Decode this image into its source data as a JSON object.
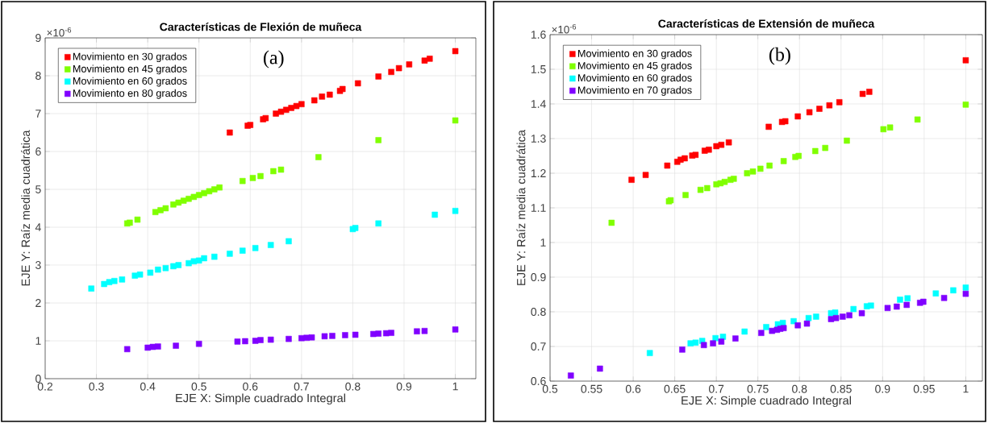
{
  "chart_data": [
    {
      "type": "scatter",
      "title": "Características de Flexión de muñeca",
      "xlabel": "EJE X: Simple cuadrado Integral",
      "ylabel": "EJE Y: Raíz media cuadrática",
      "annotations": [
        "×10$^{-6}$",
        "(a)"
      ],
      "xlim": [
        0.2,
        1.04
      ],
      "ylim": [
        0,
        9
      ],
      "xticks": [
        0.2,
        0.3,
        0.4,
        0.5,
        0.6,
        0.7,
        0.8,
        0.9,
        1
      ],
      "yticks": [
        0,
        1,
        2,
        3,
        4,
        5,
        6,
        7,
        8,
        9
      ],
      "grid": true,
      "legend": "top left",
      "marker": "square",
      "series": [
        {
          "name": "Movimiento en 30 grados",
          "color": "#ff0000",
          "x": [
            0.56,
            0.595,
            0.6,
            0.625,
            0.63,
            0.65,
            0.66,
            0.67,
            0.68,
            0.69,
            0.7,
            0.725,
            0.74,
            0.755,
            0.775,
            0.78,
            0.81,
            0.85,
            0.875,
            0.89,
            0.91,
            0.94,
            0.95,
            1
          ],
          "values": [
            6.5,
            6.68,
            6.7,
            6.85,
            6.88,
            7.0,
            7.05,
            7.1,
            7.15,
            7.2,
            7.25,
            7.35,
            7.45,
            7.5,
            7.6,
            7.65,
            7.8,
            7.98,
            8.1,
            8.2,
            8.3,
            8.4,
            8.45,
            8.65
          ]
        },
        {
          "name": "Movimiento en 45 grados",
          "color": "#80ff00",
          "x": [
            0.36,
            0.365,
            0.38,
            0.415,
            0.425,
            0.435,
            0.45,
            0.46,
            0.47,
            0.48,
            0.49,
            0.5,
            0.51,
            0.52,
            0.53,
            0.54,
            0.585,
            0.605,
            0.62,
            0.645,
            0.66,
            0.733,
            0.85,
            1
          ],
          "values": [
            4.1,
            4.12,
            4.2,
            4.4,
            4.45,
            4.5,
            4.6,
            4.65,
            4.7,
            4.75,
            4.8,
            4.85,
            4.9,
            4.95,
            5.0,
            5.05,
            5.22,
            5.3,
            5.35,
            5.48,
            5.52,
            5.85,
            6.3,
            6.82
          ]
        },
        {
          "name": "Movimiento en 60 grados",
          "color": "#00ffff",
          "x": [
            0.29,
            0.315,
            0.325,
            0.335,
            0.35,
            0.375,
            0.385,
            0.405,
            0.42,
            0.435,
            0.45,
            0.46,
            0.48,
            0.49,
            0.5,
            0.51,
            0.53,
            0.56,
            0.585,
            0.61,
            0.64,
            0.675,
            0.8,
            0.805,
            0.85,
            0.96,
            1
          ],
          "values": [
            2.38,
            2.5,
            2.55,
            2.58,
            2.62,
            2.72,
            2.75,
            2.8,
            2.88,
            2.92,
            2.97,
            3.0,
            3.05,
            3.1,
            3.12,
            3.18,
            3.22,
            3.3,
            3.38,
            3.45,
            3.53,
            3.63,
            3.95,
            3.98,
            4.1,
            4.33,
            4.43
          ]
        },
        {
          "name": "Movimiento en 80 grados",
          "color": "#8000ff",
          "x": [
            0.36,
            0.4,
            0.41,
            0.42,
            0.455,
            0.5,
            0.575,
            0.59,
            0.61,
            0.62,
            0.64,
            0.675,
            0.7,
            0.71,
            0.72,
            0.745,
            0.76,
            0.785,
            0.805,
            0.84,
            0.85,
            0.865,
            0.875,
            0.925,
            0.94,
            1
          ],
          "values": [
            0.78,
            0.82,
            0.84,
            0.85,
            0.87,
            0.92,
            0.98,
            0.99,
            1.0,
            1.02,
            1.03,
            1.05,
            1.07,
            1.08,
            1.09,
            1.12,
            1.13,
            1.15,
            1.16,
            1.18,
            1.19,
            1.2,
            1.21,
            1.25,
            1.26,
            1.3
          ]
        }
      ]
    },
    {
      "type": "scatter",
      "title": "Características de Extensión de muñeca",
      "xlabel": "EJE X: Simple cuadrado Integral",
      "ylabel": "EJE Y: Raíz media cuadrática",
      "annotations": [
        "×10$^{-6}$",
        "(b)"
      ],
      "xlim": [
        0.5,
        1.02
      ],
      "ylim": [
        0.6,
        1.6
      ],
      "xticks": [
        0.5,
        0.55,
        0.6,
        0.65,
        0.7,
        0.75,
        0.8,
        0.85,
        0.9,
        0.95,
        1
      ],
      "yticks": [
        0.6,
        0.7,
        0.8,
        0.9,
        1,
        1.1,
        1.2,
        1.3,
        1.4,
        1.5,
        1.6
      ],
      "grid": true,
      "legend": "top left",
      "marker": "square",
      "series": [
        {
          "name": "Movimiento en 30 grados",
          "color": "#ff0000",
          "x": [
            0.598,
            0.615,
            0.641,
            0.653,
            0.657,
            0.662,
            0.671,
            0.675,
            0.686,
            0.691,
            0.7,
            0.706,
            0.715,
            0.763,
            0.779,
            0.783,
            0.798,
            0.812,
            0.824,
            0.836,
            0.848,
            0.876,
            0.884,
            1
          ],
          "values": [
            1.181,
            1.195,
            1.222,
            1.233,
            1.239,
            1.243,
            1.251,
            1.253,
            1.265,
            1.268,
            1.278,
            1.282,
            1.289,
            1.334,
            1.348,
            1.35,
            1.364,
            1.376,
            1.386,
            1.396,
            1.405,
            1.429,
            1.435,
            1.526
          ]
        },
        {
          "name": "Movimiento en 45 grados",
          "color": "#80ff00",
          "x": [
            0.574,
            0.643,
            0.645,
            0.663,
            0.681,
            0.689,
            0.7,
            0.705,
            0.71,
            0.717,
            0.721,
            0.737,
            0.744,
            0.753,
            0.764,
            0.781,
            0.795,
            0.799,
            0.819,
            0.831,
            0.857,
            0.901,
            0.909,
            0.942,
            1
          ],
          "values": [
            1.057,
            1.119,
            1.122,
            1.137,
            1.152,
            1.157,
            1.168,
            1.171,
            1.175,
            1.181,
            1.184,
            1.2,
            1.205,
            1.213,
            1.222,
            1.235,
            1.247,
            1.25,
            1.264,
            1.273,
            1.294,
            1.327,
            1.332,
            1.355,
            1.398
          ]
        },
        {
          "name": "Movimiento en 60 grados",
          "color": "#00ffff",
          "x": [
            0.62,
            0.669,
            0.675,
            0.683,
            0.699,
            0.708,
            0.734,
            0.76,
            0.774,
            0.78,
            0.793,
            0.811,
            0.82,
            0.838,
            0.843,
            0.865,
            0.881,
            0.886,
            0.921,
            0.93,
            0.964,
            0.985,
            1
          ],
          "values": [
            0.681,
            0.709,
            0.711,
            0.716,
            0.724,
            0.728,
            0.743,
            0.756,
            0.764,
            0.768,
            0.773,
            0.782,
            0.786,
            0.796,
            0.798,
            0.808,
            0.816,
            0.818,
            0.835,
            0.839,
            0.853,
            0.862,
            0.87
          ]
        },
        {
          "name": "Movimiento en 70 grados",
          "color": "#8000ff",
          "x": [
            0.525,
            0.56,
            0.659,
            0.685,
            0.696,
            0.706,
            0.723,
            0.754,
            0.767,
            0.773,
            0.777,
            0.781,
            0.798,
            0.809,
            0.838,
            0.844,
            0.852,
            0.86,
            0.875,
            0.906,
            0.917,
            0.929,
            0.945,
            0.949,
            0.974,
            1
          ],
          "values": [
            0.616,
            0.636,
            0.691,
            0.704,
            0.709,
            0.714,
            0.723,
            0.739,
            0.745,
            0.748,
            0.751,
            0.753,
            0.761,
            0.766,
            0.779,
            0.782,
            0.786,
            0.79,
            0.796,
            0.811,
            0.815,
            0.82,
            0.826,
            0.829,
            0.84,
            0.852
          ]
        }
      ]
    }
  ]
}
